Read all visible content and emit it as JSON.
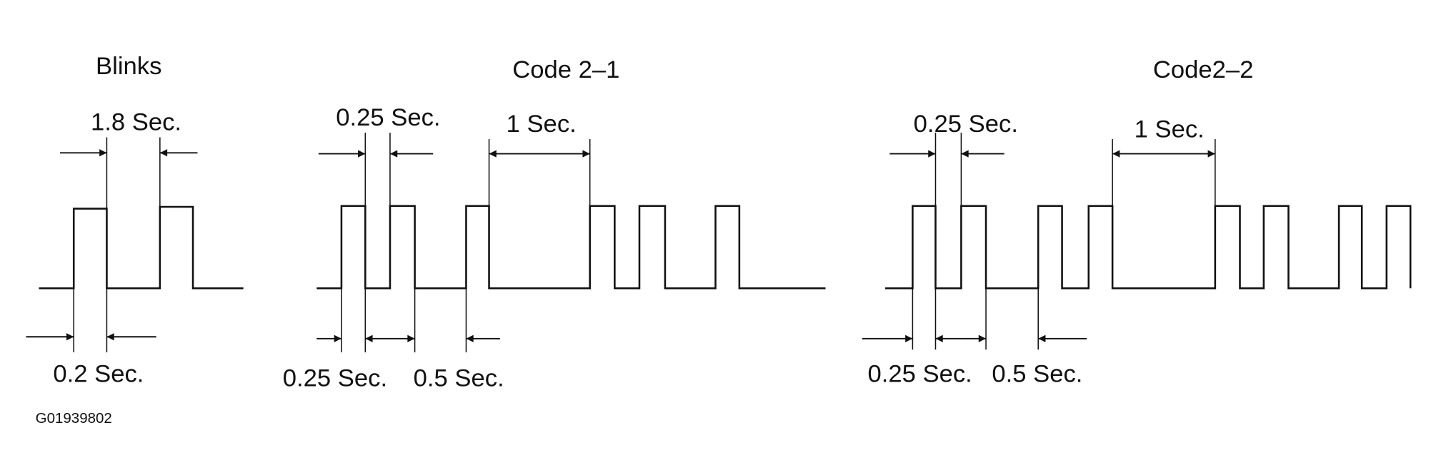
{
  "diagrams": [
    {
      "title": "Blinks",
      "labels": [
        "1.8 Sec.",
        "0.2 Sec."
      ]
    },
    {
      "title": "Code 2–1",
      "labels": [
        "0.25 Sec.",
        "1 Sec.",
        "0.25 Sec.",
        "0.5 Sec."
      ]
    },
    {
      "title": "Code2–2",
      "labels": [
        "0.25 Sec.",
        "1 Sec.",
        "0.25 Sec.",
        "0.5 Sec."
      ]
    }
  ],
  "figure_id": "G01939802"
}
